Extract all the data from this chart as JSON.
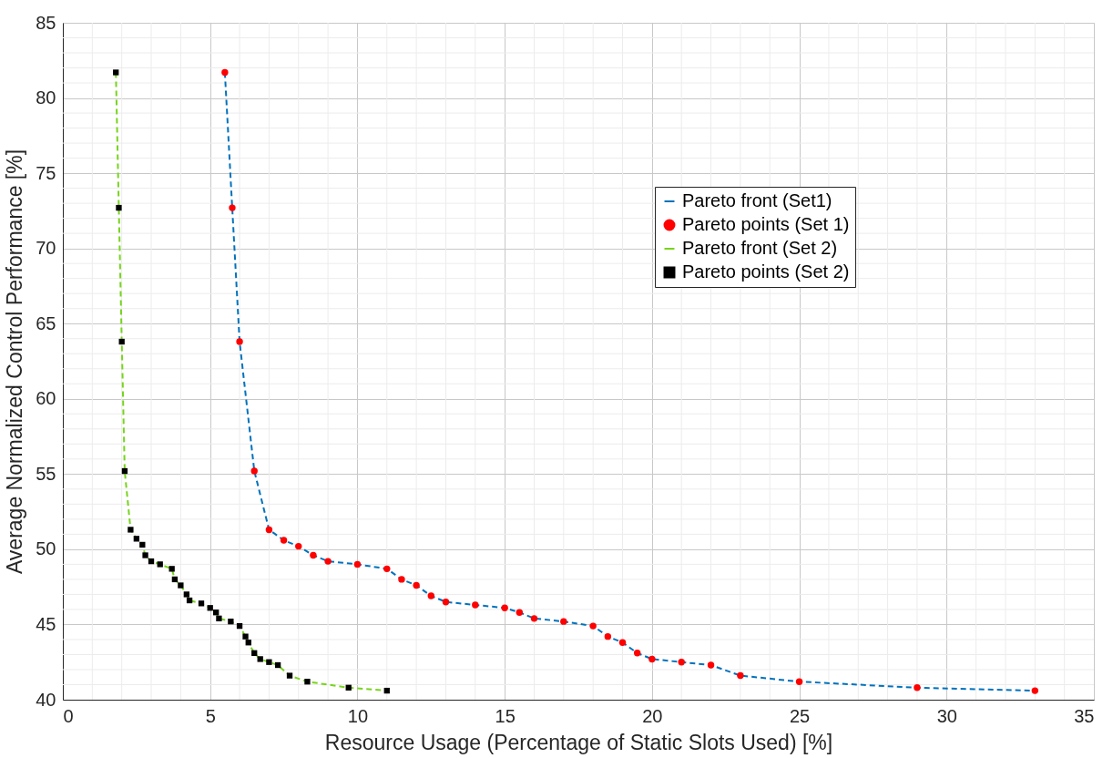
{
  "chart_data": {
    "type": "scatter",
    "xlabel": "Resource Usage (Percentage of Static Slots Used) [%]",
    "ylabel": "Average Normalized Control Performance [%]",
    "xlim": [
      0,
      35
    ],
    "xticks": [
      0,
      5,
      10,
      15,
      20,
      25,
      30,
      35
    ],
    "ylim": [
      40,
      85
    ],
    "yticks": [
      40,
      45,
      50,
      55,
      60,
      65,
      70,
      75,
      80,
      85
    ],
    "grid": true,
    "legend": "top right",
    "series": [
      {
        "name": "Pareto front (Set1)",
        "type": "line",
        "line_style": "dashed",
        "marker": "none",
        "color": "#0072bd",
        "x": [
          5.5,
          5.75,
          6,
          6.5,
          7,
          7.5,
          8,
          8.5,
          9,
          10,
          11,
          11.5,
          12,
          12.5,
          13,
          14,
          15,
          15.5,
          16,
          17,
          18,
          18.5,
          19,
          19.5,
          20,
          21,
          22,
          23,
          25,
          29,
          33
        ],
        "values": [
          81.7,
          72.7,
          63.8,
          55.2,
          51.3,
          50.6,
          50.2,
          49.6,
          49.2,
          49.0,
          48.7,
          48.0,
          47.6,
          46.9,
          46.5,
          46.3,
          46.1,
          45.8,
          45.4,
          45.2,
          44.9,
          44.2,
          43.8,
          43.1,
          42.7,
          42.5,
          42.3,
          41.6,
          41.2,
          40.8,
          40.6
        ]
      },
      {
        "name": "Pareto points (Set 1)",
        "marker": "circle",
        "color": "#ff0000",
        "x": [
          5.5,
          5.75,
          6,
          6.5,
          7,
          7.5,
          8,
          8.5,
          9,
          10,
          11,
          11.5,
          12,
          12.5,
          13,
          14,
          15,
          15.5,
          16,
          17,
          18,
          18.5,
          19,
          19.5,
          20,
          21,
          22,
          23,
          25,
          29,
          33
        ],
        "values": [
          81.7,
          72.7,
          63.8,
          55.2,
          51.3,
          50.6,
          50.2,
          49.6,
          49.2,
          49.0,
          48.7,
          48.0,
          47.6,
          46.9,
          46.5,
          46.3,
          46.1,
          45.8,
          45.4,
          45.2,
          44.9,
          44.2,
          43.8,
          43.1,
          42.7,
          42.5,
          42.3,
          41.6,
          41.2,
          40.8,
          40.6
        ]
      },
      {
        "name": "Pareto front (Set 2)",
        "type": "line",
        "line_style": "dashed",
        "marker": "none",
        "color": "#77d41c",
        "x": [
          1.8,
          1.9,
          2.0,
          2.1,
          2.3,
          2.5,
          2.7,
          2.8,
          3.0,
          3.3,
          3.7,
          3.8,
          4.0,
          4.2,
          4.3,
          4.7,
          5.0,
          5.2,
          5.3,
          5.7,
          6.0,
          6.2,
          6.3,
          6.5,
          6.7,
          7.0,
          7.3,
          7.7,
          8.3,
          9.7,
          11
        ],
        "values": [
          81.7,
          72.7,
          63.8,
          55.2,
          51.3,
          50.7,
          50.3,
          49.6,
          49.2,
          49.0,
          48.7,
          48.0,
          47.6,
          47.0,
          46.6,
          46.4,
          46.1,
          45.8,
          45.4,
          45.2,
          44.9,
          44.2,
          43.8,
          43.1,
          42.7,
          42.5,
          42.3,
          41.6,
          41.2,
          40.8,
          40.6
        ]
      },
      {
        "name": "Pareto points (Set 2)",
        "marker": "square",
        "color": "#000000",
        "x": [
          1.8,
          1.9,
          2.0,
          2.1,
          2.3,
          2.5,
          2.7,
          2.8,
          3.0,
          3.3,
          3.7,
          3.8,
          4.0,
          4.2,
          4.3,
          4.7,
          5.0,
          5.2,
          5.3,
          5.7,
          6.0,
          6.2,
          6.3,
          6.5,
          6.7,
          7.0,
          7.3,
          7.7,
          8.3,
          9.7,
          11
        ],
        "values": [
          81.7,
          72.7,
          63.8,
          55.2,
          51.3,
          50.7,
          50.3,
          49.6,
          49.2,
          49.0,
          48.7,
          48.0,
          47.6,
          47.0,
          46.6,
          46.4,
          46.1,
          45.8,
          45.4,
          45.2,
          44.9,
          44.2,
          43.8,
          43.1,
          42.7,
          42.5,
          42.3,
          41.6,
          41.2,
          40.8,
          40.6
        ]
      }
    ]
  }
}
